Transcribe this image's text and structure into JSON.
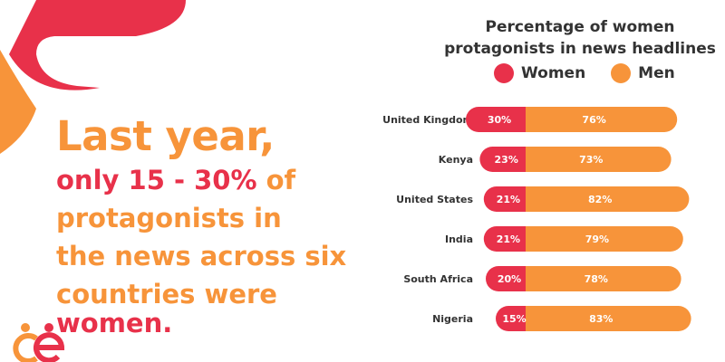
{
  "headline": {
    "line1": "Last year,",
    "line2a": "only 15 - 30%",
    "line2b": " of",
    "line3": "protagonists in",
    "line4": "the news across six",
    "line5a": "countries were ",
    "line5b": "women."
  },
  "logo_icon": "ce-logo-icon",
  "colors": {
    "women": "#e8314a",
    "men": "#f7943a",
    "text": "#333333"
  },
  "chart_data": {
    "type": "bar",
    "title": "Percentage of women protagonists in news headlines",
    "title_line1": "Percentage of women",
    "title_line2": "protagonists in news headlines",
    "legend": [
      "Women",
      "Men"
    ],
    "categories": [
      "United Kingdom",
      "Kenya",
      "United States",
      "India",
      "South Africa",
      "Nigeria"
    ],
    "series": [
      {
        "name": "Women",
        "values": [
          30,
          23,
          21,
          21,
          20,
          15
        ],
        "labels": [
          "30%",
          "23%",
          "21%",
          "21%",
          "20%",
          "15%"
        ]
      },
      {
        "name": "Men",
        "values": [
          76,
          73,
          82,
          79,
          78,
          83
        ],
        "labels": [
          "76%",
          "73%",
          "82%",
          "79%",
          "78%",
          "83%"
        ]
      }
    ]
  }
}
